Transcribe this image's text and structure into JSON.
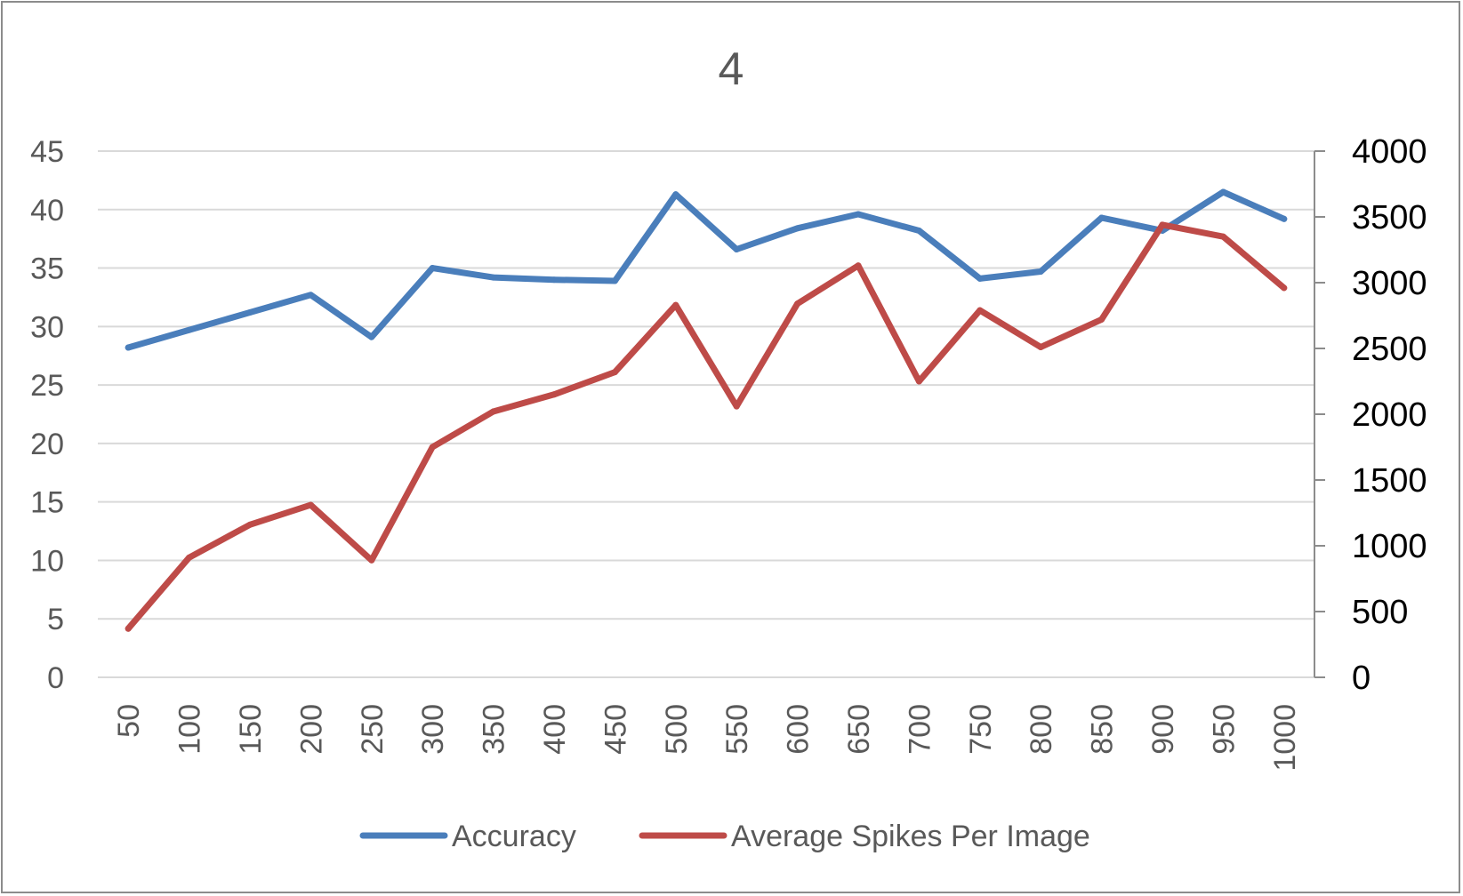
{
  "chart_data": {
    "type": "line",
    "title": "4",
    "xlabel": "",
    "ylabel": "",
    "y2label": "",
    "categories": [
      "50",
      "100",
      "150",
      "200",
      "250",
      "300",
      "350",
      "400",
      "450",
      "500",
      "550",
      "600",
      "650",
      "700",
      "750",
      "800",
      "850",
      "900",
      "950",
      "1000"
    ],
    "ylim": [
      0,
      45
    ],
    "y_ticks": [
      "0",
      "5",
      "10",
      "15",
      "20",
      "25",
      "30",
      "35",
      "40",
      "45"
    ],
    "y2lim": [
      0,
      4000
    ],
    "y2_ticks": [
      "0",
      "500",
      "1000",
      "1500",
      "2000",
      "2500",
      "3000",
      "3500",
      "4000"
    ],
    "grid": true,
    "legend_position": "bottom",
    "series": [
      {
        "name": "Accuracy",
        "axis": "left",
        "color": "#4a7ebb",
        "values": [
          28.2,
          29.7,
          31.2,
          32.7,
          29.1,
          35.0,
          34.2,
          34.0,
          33.9,
          41.3,
          36.6,
          38.4,
          39.6,
          38.2,
          34.1,
          34.7,
          39.3,
          38.2,
          41.5,
          39.2
        ]
      },
      {
        "name": "Average Spikes Per Image",
        "axis": "right",
        "color": "#be4b48",
        "values": [
          370,
          910,
          1160,
          1310,
          890,
          1750,
          2020,
          2150,
          2320,
          2830,
          2060,
          2840,
          3130,
          2250,
          2790,
          2510,
          2720,
          3440,
          3350,
          2960
        ]
      }
    ]
  },
  "colors": {
    "gridline": "#d9d9d9",
    "axis_text": "#595959",
    "right_axis_text": "#000000",
    "right_axis_line": "#8c8c8c",
    "frame": "#8c8c8c"
  }
}
